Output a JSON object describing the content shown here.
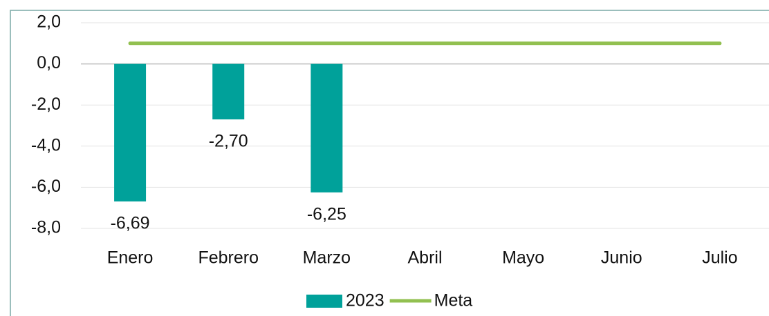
{
  "chart_data": {
    "type": "bar",
    "categories": [
      "Enero",
      "Febrero",
      "Marzo",
      "Abril",
      "Mayo",
      "Junio",
      "Julio"
    ],
    "series": [
      {
        "name": "2023",
        "type": "bar",
        "color": "#00a19a",
        "values": [
          -6.69,
          -2.7,
          -6.25,
          null,
          null,
          null,
          null
        ],
        "value_labels": [
          "-6,69",
          "-2,70",
          "-6,25",
          null,
          null,
          null,
          null
        ]
      },
      {
        "name": "Meta",
        "type": "line",
        "color": "#92c050",
        "values": [
          1,
          1,
          1,
          1,
          1,
          1,
          1
        ]
      }
    ],
    "ylim": [
      -8,
      2
    ],
    "yticks": [
      {
        "value": 2,
        "label": "2,0"
      },
      {
        "value": 0,
        "label": "0,0"
      },
      {
        "value": -2,
        "label": "-2,0"
      },
      {
        "value": -4,
        "label": "-4,0"
      },
      {
        "value": -6,
        "label": "-6,0"
      },
      {
        "value": -8,
        "label": "-8,0"
      }
    ],
    "grid": true,
    "legend": "bottom"
  }
}
